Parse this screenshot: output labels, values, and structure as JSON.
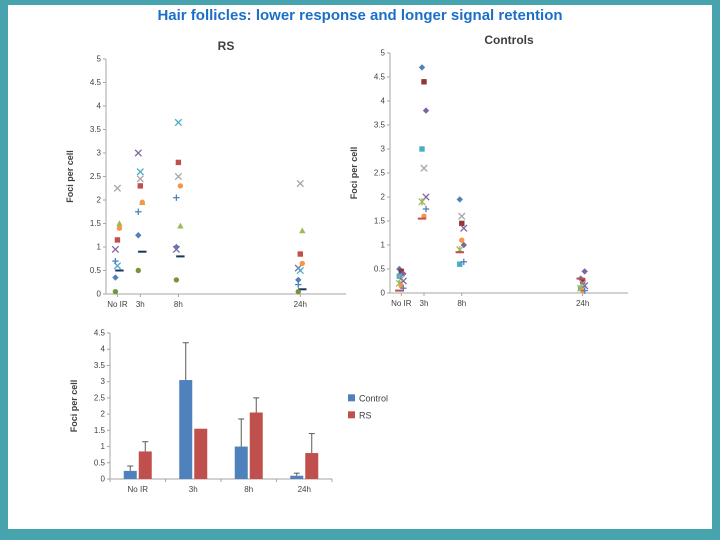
{
  "slide": {
    "title": "Hair follicles: lower response and longer signal retention",
    "colors": {
      "border": "#47A3AD",
      "title": "#1C6FC8",
      "background": "#FFFFFF"
    }
  },
  "chart_data": [
    {
      "type": "scatter",
      "title": "RS",
      "ylabel": "Foci per cell",
      "categories": [
        "No IR",
        "3h",
        "8h",
        "24h"
      ],
      "x": [
        0,
        3,
        8,
        24
      ],
      "xlim": [
        -1.5,
        30
      ],
      "ylim": [
        0,
        5
      ],
      "ytick_step": 0.5,
      "grid": false,
      "series": [
        {
          "marker": "diamond",
          "color": "#4F81BD",
          "values": [
            0.35,
            1.25,
            1.0,
            0.3
          ]
        },
        {
          "marker": "square",
          "color": "#C0504D",
          "values": [
            1.15,
            2.3,
            2.8,
            0.85
          ]
        },
        {
          "marker": "triangle",
          "color": "#9BBB59",
          "values": [
            1.5,
            1.95,
            1.45,
            1.35
          ]
        },
        {
          "marker": "x",
          "color": "#8064A2",
          "values": [
            0.95,
            3.0,
            0.95,
            0.55
          ]
        },
        {
          "marker": "x",
          "color": "#4BACC6",
          "values": [
            0.6,
            2.6,
            3.65,
            0.5
          ]
        },
        {
          "marker": "circle",
          "color": "#F79646",
          "values": [
            1.4,
            1.95,
            2.3,
            0.65
          ]
        },
        {
          "marker": "plus",
          "color": "#4F81BD",
          "values": [
            0.7,
            1.75,
            2.05,
            0.2
          ]
        },
        {
          "marker": "x",
          "color": "#A6A6A6",
          "values": [
            2.25,
            2.45,
            2.5,
            2.35
          ]
        },
        {
          "marker": "dash",
          "color": "#17375E",
          "values": [
            0.5,
            0.9,
            0.8,
            0.1
          ]
        },
        {
          "marker": "circle",
          "color": "#77933C",
          "values": [
            0.05,
            0.5,
            0.3,
            0.05
          ]
        }
      ]
    },
    {
      "type": "scatter",
      "title": "Controls",
      "ylabel": "Foci per cell",
      "categories": [
        "No IR",
        "3h",
        "8h",
        "24h"
      ],
      "x": [
        0,
        3,
        8,
        24
      ],
      "xlim": [
        -1.5,
        30
      ],
      "ylim": [
        0,
        5
      ],
      "ytick_step": 0.5,
      "grid": false,
      "series": [
        {
          "marker": "diamond",
          "color": "#4F81BD",
          "values": [
            0.5,
            4.7,
            1.95,
            0.3
          ]
        },
        {
          "marker": "square",
          "color": "#943634",
          "values": [
            0.45,
            4.4,
            1.45,
            0.25
          ]
        },
        {
          "marker": "diamond",
          "color": "#8064A2",
          "values": [
            0.4,
            3.8,
            1.0,
            0.45
          ]
        },
        {
          "marker": "square",
          "color": "#4BACC6",
          "values": [
            0.35,
            3.0,
            0.6,
            0.1
          ]
        },
        {
          "marker": "x",
          "color": "#A6A6A6",
          "values": [
            0.3,
            2.6,
            1.6,
            0.2
          ]
        },
        {
          "marker": "x",
          "color": "#8064A2",
          "values": [
            0.25,
            2.0,
            1.35,
            0.15
          ]
        },
        {
          "marker": "star",
          "color": "#9BBB59",
          "values": [
            0.2,
            1.9,
            0.9,
            0.1
          ]
        },
        {
          "marker": "circle",
          "color": "#F79646",
          "values": [
            0.15,
            1.6,
            1.1,
            0.05
          ]
        },
        {
          "marker": "plus",
          "color": "#4F81BD",
          "values": [
            0.1,
            1.75,
            0.65,
            0.05
          ]
        },
        {
          "marker": "dash",
          "color": "#C0504D",
          "values": [
            0.05,
            1.55,
            0.85,
            0.3
          ]
        }
      ]
    },
    {
      "type": "bar",
      "title": "",
      "ylabel": "Foci per cell",
      "categories": [
        "No IR",
        "3h",
        "8h",
        "24h"
      ],
      "ylim": [
        0,
        4.5
      ],
      "ytick_step": 0.5,
      "legend_position": "right",
      "series": [
        {
          "name": "Control",
          "color": "#4F81BD",
          "values": [
            0.25,
            3.05,
            1.0,
            0.1
          ],
          "errors": [
            0.15,
            1.15,
            0.85,
            0.08
          ]
        },
        {
          "name": "RS",
          "color": "#C0504D",
          "values": [
            0.85,
            1.55,
            2.05,
            0.8
          ],
          "errors": [
            0.3,
            0,
            0.45,
            0.6
          ]
        }
      ]
    }
  ]
}
